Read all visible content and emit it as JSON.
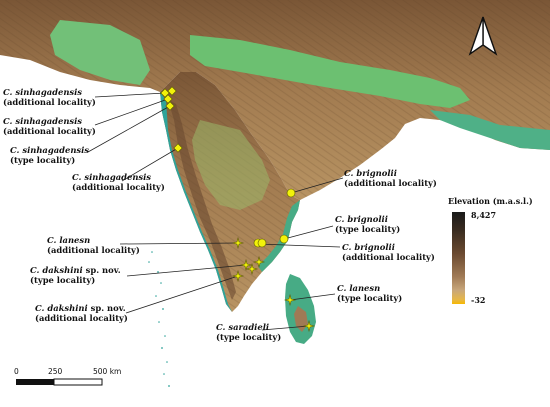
{
  "map": {
    "legend": {
      "title": "Elevation (m.a.s.l.)",
      "max_value": "8,427",
      "min_value": "-32",
      "colors": [
        "#1a1a1a",
        "#3a2c20",
        "#6b4a30",
        "#a07a55",
        "#c8a67a",
        "#e5b64a",
        "#f7b800"
      ]
    },
    "scale_bar": {
      "labels": [
        "0",
        "250",
        "500 km"
      ]
    },
    "north_arrow": {
      "icon": "north-arrow-icon"
    },
    "localities": [
      {
        "id": "sinh-add-1",
        "species": "C. sinhagadensis",
        "note": "(additional locality)",
        "marker": "diamond"
      },
      {
        "id": "sinh-add-2",
        "species": "C. sinhagadensis",
        "note": "(additional locality)",
        "marker": "diamond"
      },
      {
        "id": "sinh-type",
        "species": "C. sinhagadensis",
        "note": "(type locality)",
        "marker": "diamond"
      },
      {
        "id": "sinh-add-3",
        "species": "C. sinhagadensis",
        "note": "(additional locality)",
        "marker": "diamond"
      },
      {
        "id": "brig-add-1",
        "species": "C. brignolii",
        "note": "(additional locality)",
        "marker": "circle"
      },
      {
        "id": "brig-type",
        "species": "C. brignolii",
        "note": "(type locality)",
        "marker": "circle"
      },
      {
        "id": "brig-add-2",
        "species": "C. brignolii",
        "note": "(additional locality)",
        "marker": "circle"
      },
      {
        "id": "lanesn-add",
        "species": "C. lanesn",
        "note": "(additional locality)",
        "marker": "star"
      },
      {
        "id": "dak-type",
        "species": "C. dakshini",
        "species_suffix": " sp. nov.",
        "note": "(type locality)",
        "marker": "star"
      },
      {
        "id": "dak-add",
        "species": "C. dakshini",
        "species_suffix": " sp. nov.",
        "note": "(additional locality)",
        "marker": "star"
      },
      {
        "id": "lanesn-type",
        "species": "C. lanesn",
        "note": "(type locality)",
        "marker": "star"
      },
      {
        "id": "sara-type",
        "species": "C. saradieli",
        "note": "(type locality)",
        "marker": "star"
      }
    ],
    "colors": {
      "sea": "#ffffff",
      "lowland": "#2fa39a",
      "plain": "#6cc071",
      "upland": "#c8b46a",
      "plateau": "#a57e52",
      "highland": "#7a5636",
      "marker_fill": "#f2f20a"
    }
  }
}
